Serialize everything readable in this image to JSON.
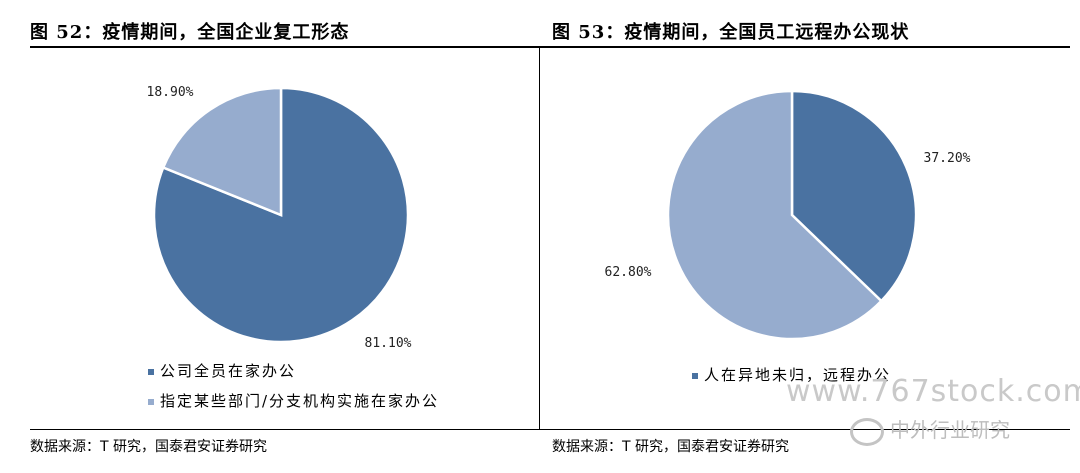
{
  "left": {
    "title": "图 52：疫情期间，全国企业复工形态",
    "source": "数据来源：T 研究，国泰君安证券研究"
  },
  "right": {
    "title": "图 53：疫情期间，全国员工远程办公现状",
    "source": "数据来源：T 研究，国泰君安证券研究"
  },
  "watermark": {
    "url": "www.767stock.com",
    "brand": "中外行业研究"
  },
  "chart_data": [
    {
      "type": "pie",
      "title": "图 52：疫情期间，全国企业复工形态",
      "labels": [
        "公司全员在家办公",
        "指定某些部门/分支机构实施在家办公"
      ],
      "values": [
        81.1,
        18.9
      ],
      "value_labels": [
        "81.10%",
        "18.90%"
      ],
      "colors": [
        "#4a72a1",
        "#96acce"
      ],
      "legend_position": "bottom-left"
    },
    {
      "type": "pie",
      "title": "图 53：疫情期间，全国员工远程办公现状",
      "labels": [
        "人在异地未归，远程办公",
        ""
      ],
      "values": [
        37.2,
        62.8
      ],
      "value_labels": [
        "37.20%",
        "62.80%"
      ],
      "colors": [
        "#4a72a1",
        "#96acce"
      ],
      "legend_position": "bottom"
    }
  ]
}
